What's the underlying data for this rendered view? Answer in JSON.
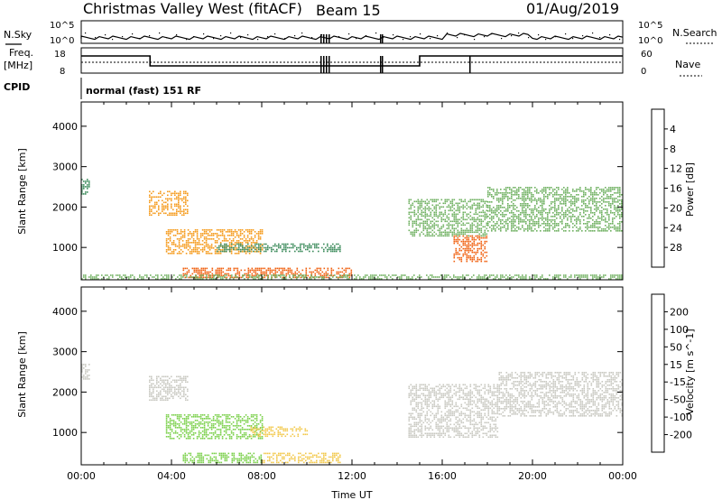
{
  "header": {
    "station": "Christmas Valley West (fitACF)",
    "beam": "Beam 15",
    "date": "01/Aug/2019"
  },
  "top_panel": {
    "left_label": "N.Sky",
    "right_label": "N.Search",
    "left_ticks": [
      "10^5",
      "10^0"
    ],
    "right_ticks": [
      "10^5",
      "10^0"
    ]
  },
  "freq_panel": {
    "left_label_1": "Freq.",
    "left_label_2": "[MHz]",
    "right_label": "Nave",
    "left_ticks": [
      "18",
      "8"
    ],
    "right_ticks": [
      "60",
      "0"
    ]
  },
  "cpid": {
    "label": "CPID",
    "text": "normal (fast) 151 RF"
  },
  "colors": {
    "power_scale": [
      "#0a1ee8",
      "#2f58a6",
      "#3a8a5a",
      "#6fb060",
      "#e8cf2a",
      "#f59a1a",
      "#f06010",
      "#e81010"
    ],
    "velocity_scale": [
      "#e81010",
      "#f05a10",
      "#f5a21a",
      "#f2c84a",
      "#c8c8c0",
      "#7ad04a",
      "#3a9a5a",
      "#2f58a6",
      "#2420b8"
    ]
  },
  "chart_data": [
    {
      "type": "heatmap",
      "title": "",
      "xlabel": "",
      "ylabel": "Slant Range [km]",
      "xlim": [
        "00:00",
        "24:00"
      ],
      "ylim": [
        200,
        4600
      ],
      "y_ticks": [
        "1000",
        "2000",
        "3000",
        "4000"
      ],
      "colorbar_label": "Power [dB]",
      "colorbar_ticks": [
        "4",
        "8",
        "12",
        "16",
        "20",
        "24",
        "28"
      ],
      "colorbar_range": [
        0,
        32
      ],
      "regions": [
        {
          "t_start": "03:00",
          "t_end": "04:45",
          "range_start": 1800,
          "range_end": 2400,
          "value": 20
        },
        {
          "t_start": "03:45",
          "t_end": "08:00",
          "range_start": 850,
          "range_end": 1450,
          "value": 22
        },
        {
          "t_start": "06:00",
          "t_end": "11:30",
          "range_start": 900,
          "range_end": 1100,
          "value": 8
        },
        {
          "t_start": "04:30",
          "t_end": "12:00",
          "range_start": 250,
          "range_end": 500,
          "value": 26
        },
        {
          "t_start": "00:00",
          "t_end": "24:00",
          "range_start": 200,
          "range_end": 330,
          "value": 14
        },
        {
          "t_start": "14:30",
          "t_end": "18:00",
          "range_start": 1300,
          "range_end": 2200,
          "value": 12
        },
        {
          "t_start": "16:30",
          "t_end": "18:00",
          "range_start": 650,
          "range_end": 1300,
          "value": 24
        },
        {
          "t_start": "18:00",
          "t_end": "24:00",
          "range_start": 1400,
          "range_end": 2500,
          "value": 12
        },
        {
          "t_start": "00:00",
          "t_end": "00:20",
          "range_start": 2300,
          "range_end": 2700,
          "value": 10
        }
      ]
    },
    {
      "type": "heatmap",
      "title": "",
      "xlabel": "Time UT",
      "ylabel": "Slant Range [km]",
      "xlim": [
        "00:00",
        "24:00"
      ],
      "ylim": [
        200,
        4600
      ],
      "x_ticks": [
        "00:00",
        "04:00",
        "08:00",
        "12:00",
        "16:00",
        "20:00",
        "00:00"
      ],
      "y_ticks": [
        "1000",
        "2000",
        "3000",
        "4000"
      ],
      "colorbar_label": "Velocity [m s^-1]",
      "colorbar_ticks": [
        "200",
        "100",
        "50",
        "15",
        "-15",
        "-50",
        "-100",
        "-200"
      ],
      "colorbar_range": [
        -250,
        250
      ],
      "regions": [
        {
          "t_start": "03:00",
          "t_end": "04:45",
          "range_start": 1800,
          "range_end": 2400,
          "value": 0
        },
        {
          "t_start": "03:45",
          "t_end": "08:00",
          "range_start": 850,
          "range_end": 1450,
          "value": -60
        },
        {
          "t_start": "07:30",
          "t_end": "10:00",
          "range_start": 900,
          "range_end": 1150,
          "value": 30
        },
        {
          "t_start": "08:00",
          "t_end": "11:30",
          "range_start": 250,
          "range_end": 500,
          "value": 40
        },
        {
          "t_start": "04:30",
          "t_end": "08:00",
          "range_start": 250,
          "range_end": 500,
          "value": -60
        },
        {
          "t_start": "14:30",
          "t_end": "18:30",
          "range_start": 900,
          "range_end": 2200,
          "value": 0
        },
        {
          "t_start": "18:30",
          "t_end": "24:00",
          "range_start": 1400,
          "range_end": 2500,
          "value": 0
        },
        {
          "t_start": "00:00",
          "t_end": "00:20",
          "range_start": 2300,
          "range_end": 2700,
          "value": 0
        }
      ]
    }
  ]
}
